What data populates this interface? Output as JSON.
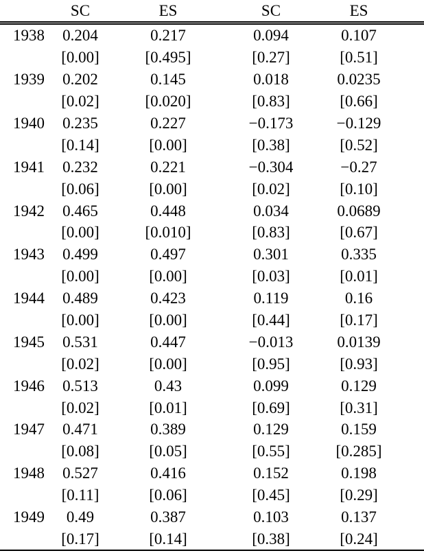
{
  "table": {
    "headers": [
      "",
      "SC",
      "ES",
      "SC",
      "ES"
    ],
    "rows": [
      {
        "label": "1938",
        "type": "estimate",
        "cells": [
          "0.204",
          "0.217",
          "0.094",
          "0.107"
        ]
      },
      {
        "label": "",
        "type": "pvalue",
        "cells": [
          "[0.00]",
          "[0.495]",
          "[0.27]",
          "[0.51]"
        ]
      },
      {
        "label": "1939",
        "type": "estimate",
        "cells": [
          "0.202",
          "0.145",
          "0.018",
          "0.0235"
        ]
      },
      {
        "label": "",
        "type": "pvalue",
        "cells": [
          "[0.02]",
          "[0.020]",
          "[0.83]",
          "[0.66]"
        ]
      },
      {
        "label": "1940",
        "type": "estimate",
        "cells": [
          "0.235",
          "0.227",
          "−0.173",
          "−0.129"
        ]
      },
      {
        "label": "",
        "type": "pvalue",
        "cells": [
          "[0.14]",
          "[0.00]",
          "[0.38]",
          "[0.52]"
        ]
      },
      {
        "label": "1941",
        "type": "estimate",
        "cells": [
          "0.232",
          "0.221",
          "−0.304",
          "−0.27"
        ]
      },
      {
        "label": "",
        "type": "pvalue",
        "cells": [
          "[0.06]",
          "[0.00]",
          "[0.02]",
          "[0.10]"
        ]
      },
      {
        "label": "1942",
        "type": "estimate",
        "cells": [
          "0.465",
          "0.448",
          "0.034",
          "0.0689"
        ]
      },
      {
        "label": "",
        "type": "pvalue",
        "cells": [
          "[0.00]",
          "[0.010]",
          "[0.83]",
          "[0.67]"
        ]
      },
      {
        "label": "1943",
        "type": "estimate",
        "cells": [
          "0.499",
          "0.497",
          "0.301",
          "0.335"
        ]
      },
      {
        "label": "",
        "type": "pvalue",
        "cells": [
          "[0.00]",
          "[0.00]",
          "[0.03]",
          "[0.01]"
        ]
      },
      {
        "label": "1944",
        "type": "estimate",
        "cells": [
          "0.489",
          "0.423",
          "0.119",
          "0.16"
        ]
      },
      {
        "label": "",
        "type": "pvalue",
        "cells": [
          "[0.00]",
          "[0.00]",
          "[0.44]",
          "[0.17]"
        ]
      },
      {
        "label": "1945",
        "type": "estimate",
        "cells": [
          "0.531",
          "0.447",
          "−0.013",
          "0.0139"
        ]
      },
      {
        "label": "",
        "type": "pvalue",
        "cells": [
          "[0.02]",
          "[0.00]",
          "[0.95]",
          "[0.93]"
        ]
      },
      {
        "label": "1946",
        "type": "estimate",
        "cells": [
          "0.513",
          "0.43",
          "0.099",
          "0.129"
        ]
      },
      {
        "label": "",
        "type": "pvalue",
        "cells": [
          "[0.02]",
          "[0.01]",
          "[0.69]",
          "[0.31]"
        ]
      },
      {
        "label": "1947",
        "type": "estimate",
        "cells": [
          "0.471",
          "0.389",
          "0.129",
          "0.159"
        ]
      },
      {
        "label": "",
        "type": "pvalue",
        "cells": [
          "[0.08]",
          "[0.05]",
          "[0.55]",
          "[0.285]"
        ]
      },
      {
        "label": "1948",
        "type": "estimate",
        "cells": [
          "0.527",
          "0.416",
          "0.152",
          "0.198"
        ]
      },
      {
        "label": "",
        "type": "pvalue",
        "cells": [
          "[0.11]",
          "[0.06]",
          "[0.45]",
          "[0.29]"
        ]
      },
      {
        "label": "1949",
        "type": "estimate",
        "cells": [
          "0.49",
          "0.387",
          "0.103",
          "0.137"
        ]
      },
      {
        "label": "",
        "type": "pvalue",
        "cells": [
          "[0.17]",
          "[0.14]",
          "[0.38]",
          "[0.24]"
        ]
      }
    ]
  }
}
